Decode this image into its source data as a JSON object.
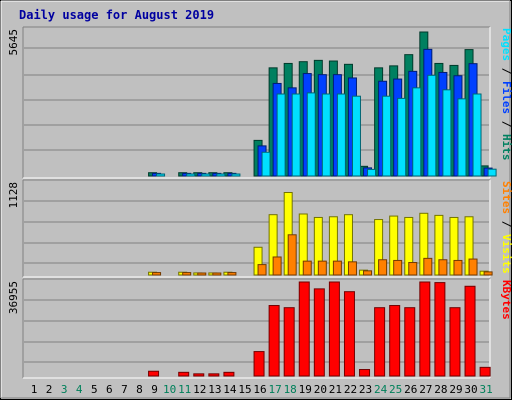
{
  "chart_data": {
    "type": "bar",
    "title": "Daily usage for August 2019",
    "categories": [
      "1",
      "2",
      "3",
      "4",
      "5",
      "6",
      "7",
      "8",
      "9",
      "10",
      "11",
      "12",
      "13",
      "14",
      "15",
      "16",
      "17",
      "18",
      "19",
      "20",
      "21",
      "22",
      "23",
      "24",
      "25",
      "26",
      "27",
      "28",
      "29",
      "30",
      "31"
    ],
    "weekend_days": [
      "3",
      "4",
      "10",
      "11",
      "17",
      "18",
      "24",
      "25",
      "31"
    ],
    "panels": [
      {
        "id": "top",
        "ymax_label": "5645",
        "ymax": 5645,
        "legend": [
          {
            "text": "Pages",
            "color": "#00e0ff"
          },
          {
            "text": " / ",
            "color": "#000000"
          },
          {
            "text": "Files",
            "color": "#0040ff"
          },
          {
            "text": " / ",
            "color": "#000000"
          },
          {
            "text": "Hits",
            "color": "#008060"
          }
        ],
        "series": [
          {
            "name": "Hits",
            "color": "#008060",
            "values": [
              0,
              0,
              0,
              0,
              0,
              0,
              0,
              0,
              150,
              0,
              150,
              150,
              150,
              150,
              0,
              1620,
              4920,
              5120,
              5200,
              5260,
              5230,
              5080,
              440,
              4920,
              5010,
              5520,
              6550,
              5120,
              5030,
              5750,
              460
            ]
          },
          {
            "name": "Files",
            "color": "#0040ff",
            "values": [
              0,
              0,
              0,
              0,
              0,
              0,
              0,
              0,
              120,
              0,
              120,
              120,
              120,
              120,
              0,
              1370,
              4210,
              4010,
              4660,
              4610,
              4610,
              4460,
              370,
              4310,
              4410,
              4760,
              5760,
              4710,
              4560,
              5110,
              360
            ]
          },
          {
            "name": "Pages",
            "color": "#00e0ff",
            "values": [
              0,
              0,
              0,
              0,
              0,
              0,
              0,
              0,
              60,
              0,
              60,
              60,
              60,
              60,
              0,
              1080,
              3730,
              3730,
              3780,
              3730,
              3730,
              3630,
              300,
              3630,
              3530,
              4010,
              4580,
              3920,
              3510,
              3730,
              310
            ]
          }
        ]
      },
      {
        "id": "middle",
        "ymax_label": "1128",
        "ymax": 1128,
        "legend": [
          {
            "text": "Sites",
            "color": "#ff8000"
          },
          {
            "text": " / ",
            "color": "#000000"
          },
          {
            "text": "Visits",
            "color": "#ffff00"
          }
        ],
        "series": [
          {
            "name": "Visits",
            "color": "#ffff00",
            "values": [
              0,
              0,
              0,
              0,
              0,
              0,
              0,
              0,
              40,
              0,
              40,
              30,
              30,
              40,
              0,
              400,
              870,
              1190,
              880,
              830,
              840,
              870,
              70,
              800,
              850,
              830,
              890,
              860,
              830,
              840,
              55
            ]
          },
          {
            "name": "Sites",
            "color": "#ff8000",
            "values": [
              0,
              0,
              0,
              0,
              0,
              0,
              0,
              0,
              35,
              0,
              35,
              25,
              25,
              35,
              0,
              150,
              260,
              580,
              200,
              200,
              200,
              190,
              60,
              220,
              210,
              180,
              240,
              220,
              210,
              230,
              45
            ]
          }
        ]
      },
      {
        "id": "bottom",
        "ymax_label": "36955",
        "ymax": 36955,
        "legend": [
          {
            "text": "KBytes",
            "color": "#ff0000"
          }
        ],
        "series": [
          {
            "name": "KBytes",
            "color": "#ff0000",
            "values": [
              0,
              0,
              0,
              0,
              0,
              0,
              0,
              0,
              2200,
              0,
              1700,
              1000,
              1000,
              1700,
              0,
              11300,
              32600,
              31600,
              45300,
              40300,
              45000,
              39000,
              3000,
              31600,
              32600,
              31600,
              48600,
              43200,
              31600,
              41500,
              4000
            ]
          }
        ]
      }
    ]
  }
}
